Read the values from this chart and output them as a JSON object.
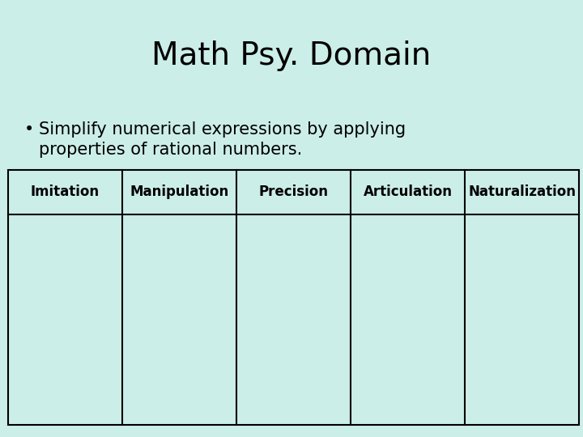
{
  "title": "Math Psy. Domain",
  "bullet_line1": "Simplify numerical expressions by applying",
  "bullet_line2": "properties of rational numbers.",
  "table_headers": [
    "Imitation",
    "Manipulation",
    "Precision",
    "Articulation",
    "Naturalization"
  ],
  "num_data_rows": 1,
  "background_color": "#cceee8",
  "table_line_color": "#000000",
  "text_color": "#000000",
  "title_fontsize": 28,
  "bullet_fontsize": 15,
  "header_fontsize": 12,
  "title_font": "DejaVu Sans",
  "body_font": "DejaVu Sans"
}
